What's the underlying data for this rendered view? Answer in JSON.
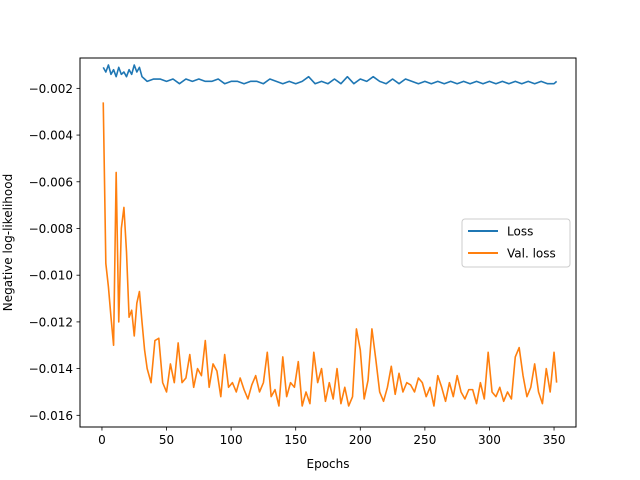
{
  "chart_data": {
    "type": "line",
    "title": "",
    "xlabel": "Epochs",
    "ylabel": "Negative log-likelihood",
    "xlim": [
      -17,
      367
    ],
    "ylim": [
      -0.0165,
      -0.0007
    ],
    "xticks": [
      0,
      50,
      100,
      150,
      200,
      250,
      300,
      350
    ],
    "xtick_labels": [
      "0",
      "50",
      "100",
      "150",
      "200",
      "250",
      "300",
      "350"
    ],
    "yticks": [
      -0.016,
      -0.014,
      -0.012,
      -0.01,
      -0.008,
      -0.006,
      -0.004,
      -0.002
    ],
    "ytick_labels": [
      "−0.016",
      "−0.014",
      "−0.012",
      "−0.010",
      "−0.008",
      "−0.006",
      "−0.004",
      "−0.002"
    ],
    "grid": false,
    "legend_position": "center-right",
    "series": [
      {
        "name": "Loss",
        "color": "#1f77b4",
        "x": [
          1,
          3,
          5,
          7,
          9,
          11,
          13,
          15,
          17,
          19,
          21,
          23,
          25,
          27,
          29,
          31,
          33,
          35,
          40,
          45,
          50,
          55,
          60,
          65,
          70,
          75,
          80,
          85,
          90,
          95,
          100,
          105,
          110,
          115,
          120,
          125,
          130,
          135,
          140,
          145,
          150,
          155,
          160,
          165,
          170,
          175,
          180,
          185,
          190,
          195,
          200,
          205,
          210,
          215,
          220,
          225,
          230,
          235,
          240,
          245,
          250,
          255,
          260,
          265,
          270,
          275,
          280,
          285,
          290,
          295,
          300,
          305,
          310,
          315,
          320,
          325,
          330,
          335,
          340,
          345,
          350,
          352
        ],
        "y": [
          -0.0011,
          -0.0013,
          -0.001,
          -0.0014,
          -0.0012,
          -0.0015,
          -0.0011,
          -0.0014,
          -0.0013,
          -0.0015,
          -0.0012,
          -0.0014,
          -0.001,
          -0.0013,
          -0.0011,
          -0.0015,
          -0.0016,
          -0.0017,
          -0.0016,
          -0.0016,
          -0.0017,
          -0.0016,
          -0.0018,
          -0.0016,
          -0.0017,
          -0.0016,
          -0.0017,
          -0.0017,
          -0.0016,
          -0.0018,
          -0.0017,
          -0.0017,
          -0.0018,
          -0.0017,
          -0.0017,
          -0.0018,
          -0.0016,
          -0.0017,
          -0.0018,
          -0.0017,
          -0.0018,
          -0.0017,
          -0.0015,
          -0.0018,
          -0.0017,
          -0.0018,
          -0.0016,
          -0.0018,
          -0.0015,
          -0.0018,
          -0.0016,
          -0.0017,
          -0.0015,
          -0.0017,
          -0.0018,
          -0.0016,
          -0.0018,
          -0.0016,
          -0.0017,
          -0.0018,
          -0.0017,
          -0.0018,
          -0.0017,
          -0.0018,
          -0.0017,
          -0.0018,
          -0.0017,
          -0.0018,
          -0.0017,
          -0.0018,
          -0.0017,
          -0.0018,
          -0.0017,
          -0.0018,
          -0.0017,
          -0.0018,
          -0.0017,
          -0.0018,
          -0.0017,
          -0.0018,
          -0.0018,
          -0.0017
        ]
      },
      {
        "name": "Val. loss",
        "color": "#ff7f0e",
        "x": [
          1,
          3,
          5,
          7,
          9,
          11,
          13,
          15,
          17,
          19,
          21,
          23,
          25,
          27,
          29,
          31,
          33,
          35,
          38,
          41,
          44,
          47,
          50,
          53,
          56,
          59,
          62,
          65,
          68,
          71,
          74,
          77,
          80,
          83,
          86,
          89,
          92,
          95,
          98,
          101,
          104,
          107,
          110,
          113,
          116,
          119,
          122,
          125,
          128,
          131,
          134,
          137,
          140,
          143,
          146,
          149,
          152,
          155,
          158,
          161,
          164,
          167,
          170,
          173,
          176,
          179,
          182,
          185,
          188,
          191,
          194,
          197,
          200,
          203,
          206,
          209,
          212,
          215,
          218,
          221,
          224,
          227,
          230,
          233,
          236,
          239,
          242,
          245,
          248,
          251,
          254,
          257,
          260,
          263,
          266,
          269,
          272,
          275,
          278,
          281,
          284,
          287,
          290,
          293,
          296,
          299,
          302,
          305,
          308,
          311,
          314,
          317,
          320,
          323,
          326,
          329,
          332,
          335,
          338,
          341,
          344,
          347,
          350,
          352
        ],
        "y": [
          -0.0026,
          -0.0095,
          -0.0105,
          -0.0118,
          -0.013,
          -0.0056,
          -0.012,
          -0.008,
          -0.0071,
          -0.009,
          -0.0118,
          -0.0115,
          -0.0126,
          -0.0112,
          -0.0107,
          -0.012,
          -0.0132,
          -0.014,
          -0.0146,
          -0.0128,
          -0.0127,
          -0.0146,
          -0.015,
          -0.0138,
          -0.0146,
          -0.0129,
          -0.0146,
          -0.0144,
          -0.0134,
          -0.0148,
          -0.014,
          -0.0143,
          -0.0128,
          -0.0148,
          -0.0138,
          -0.0141,
          -0.0152,
          -0.0134,
          -0.0148,
          -0.0146,
          -0.015,
          -0.0144,
          -0.0149,
          -0.0153,
          -0.0147,
          -0.0143,
          -0.015,
          -0.0146,
          -0.0133,
          -0.0152,
          -0.0149,
          -0.0156,
          -0.0135,
          -0.0152,
          -0.0146,
          -0.0148,
          -0.0137,
          -0.0156,
          -0.015,
          -0.0155,
          -0.0133,
          -0.0146,
          -0.014,
          -0.0154,
          -0.0146,
          -0.0153,
          -0.014,
          -0.0155,
          -0.0148,
          -0.0156,
          -0.0152,
          -0.0123,
          -0.0132,
          -0.0153,
          -0.0145,
          -0.0123,
          -0.0136,
          -0.015,
          -0.0154,
          -0.0148,
          -0.0139,
          -0.0151,
          -0.0142,
          -0.015,
          -0.0146,
          -0.0147,
          -0.015,
          -0.0144,
          -0.0146,
          -0.0152,
          -0.0148,
          -0.0156,
          -0.0143,
          -0.0148,
          -0.0154,
          -0.0146,
          -0.0152,
          -0.0143,
          -0.015,
          -0.0153,
          -0.0149,
          -0.0149,
          -0.0155,
          -0.0146,
          -0.0153,
          -0.0133,
          -0.015,
          -0.0152,
          -0.0148,
          -0.0154,
          -0.015,
          -0.0153,
          -0.0135,
          -0.0131,
          -0.0143,
          -0.0152,
          -0.0148,
          -0.0138,
          -0.015,
          -0.0155,
          -0.014,
          -0.015,
          -0.0133,
          -0.0146
        ]
      }
    ]
  }
}
